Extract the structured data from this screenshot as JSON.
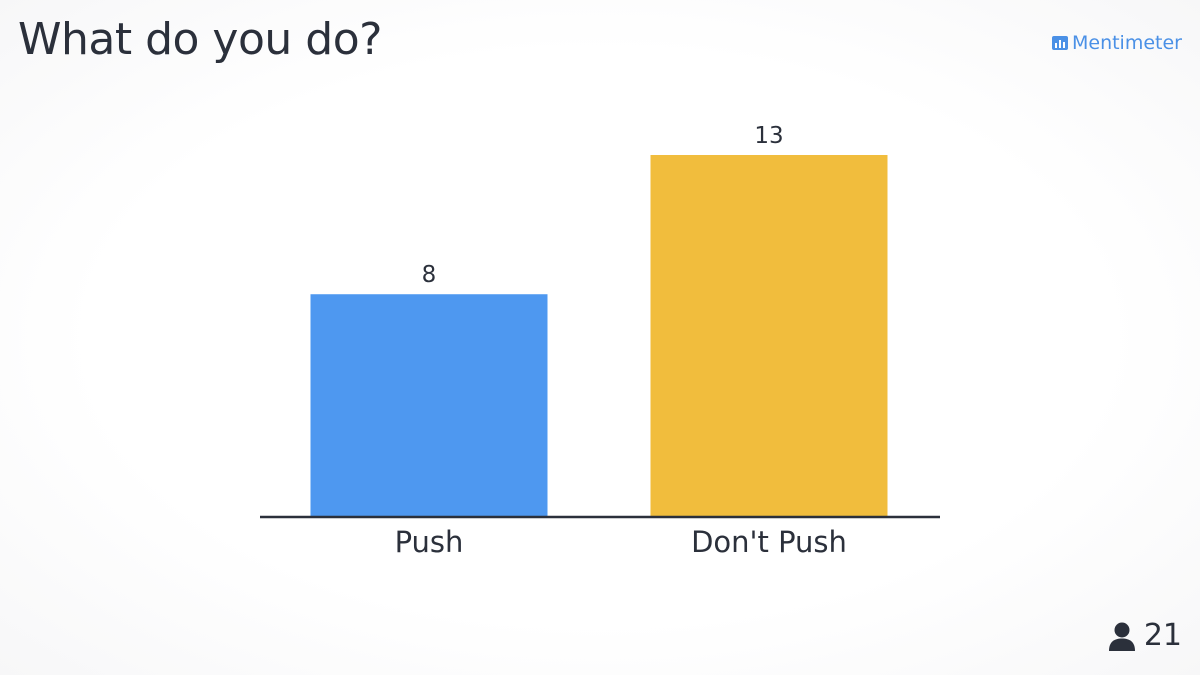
{
  "slide": {
    "title": "What do you do?"
  },
  "brand": {
    "name": "Mentimeter",
    "icon": "bar-chart-icon",
    "color": "#4a90e6"
  },
  "participants": {
    "count": "21",
    "icon": "person-icon"
  },
  "chart_data": {
    "type": "bar",
    "categories": [
      "Push",
      "Don't Push"
    ],
    "values": [
      8,
      13
    ],
    "colors": [
      "#4e98f0",
      "#f1bd3d"
    ],
    "data_labels": [
      "8",
      "13"
    ],
    "title": "",
    "xlabel": "",
    "ylabel": "",
    "ylim": [
      0,
      13
    ],
    "grid": false
  }
}
